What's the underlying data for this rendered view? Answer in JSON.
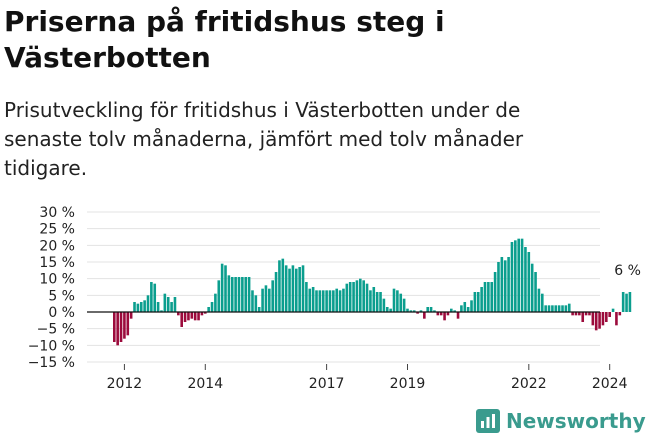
{
  "title": "Priserna på fritidshus steg i Västerbotten",
  "subtitle": "Prisutveckling för fritidshus i Västerbotten under de senaste tolv månaderna, jämfört med tolv månader tidigare.",
  "brand": {
    "name": "Newsworthy",
    "color": "#3a9b8e"
  },
  "colors": {
    "positive": "#0b9e8e",
    "negative": "#9c0b3c",
    "zero_line": "#111111",
    "grid": "#e3e3e3"
  },
  "chart_data": {
    "type": "bar",
    "x_start": "2011-10",
    "frequency": "monthly",
    "ylim": [
      -15,
      30
    ],
    "yticks": [
      -15,
      -10,
      -5,
      0,
      5,
      10,
      15,
      20,
      25,
      30
    ],
    "ytick_labels": [
      "−15 %",
      "−10 %",
      "−5 %",
      "0 %",
      "5 %",
      "10 %",
      "15 %",
      "20 %",
      "25 %",
      "30 %"
    ],
    "xtick_labels": [
      "2012",
      "2014",
      "2017",
      "2019",
      "2022",
      "2024"
    ],
    "xtick_years": [
      2012,
      2014,
      2017,
      2019,
      2022,
      2024
    ],
    "annotation": {
      "text": "6 %",
      "value": 6
    },
    "grid": true,
    "values": [
      -9,
      -10,
      -9,
      -8,
      -7,
      -2,
      3,
      2.5,
      3,
      3.5,
      5,
      9,
      8.5,
      3,
      0.5,
      5.5,
      4.5,
      3,
      4.5,
      -1,
      -4.5,
      -3,
      -2.5,
      -2,
      -2.5,
      -2.5,
      -1,
      -0.5,
      1.5,
      3,
      5.5,
      9.5,
      14.5,
      14,
      11,
      10.5,
      10.5,
      10.5,
      10.5,
      10.5,
      10.5,
      6.5,
      5,
      1.5,
      7,
      8,
      7,
      9.5,
      12,
      15.5,
      16,
      14,
      13,
      14,
      13,
      13.5,
      14,
      9,
      7,
      7.5,
      6.5,
      6.5,
      6.5,
      6.5,
      6.5,
      6.5,
      7,
      6.5,
      7,
      8.5,
      9,
      9,
      9.5,
      10,
      9.5,
      8.5,
      6.5,
      7.5,
      6,
      6,
      4,
      1.5,
      1,
      7,
      6.5,
      5.5,
      4,
      1,
      0.5,
      0.5,
      -0.5,
      0.5,
      -2,
      1.5,
      1.5,
      0.5,
      -1,
      -1,
      -2.5,
      -1,
      1,
      0.5,
      -2,
      2,
      3,
      1.5,
      3.5,
      6,
      6,
      7.5,
      9,
      9,
      9,
      12,
      15,
      16.5,
      15.5,
      16.5,
      21,
      21.5,
      22,
      22,
      19.5,
      18,
      14.5,
      12,
      7,
      5.5,
      2,
      2,
      2,
      2,
      2,
      2,
      2,
      2.5,
      -1,
      -1,
      -1,
      -3,
      -1,
      -1,
      -4,
      -5.5,
      -5,
      -4,
      -3,
      -1.5,
      1,
      -4,
      -1,
      6,
      5.5,
      6
    ]
  }
}
